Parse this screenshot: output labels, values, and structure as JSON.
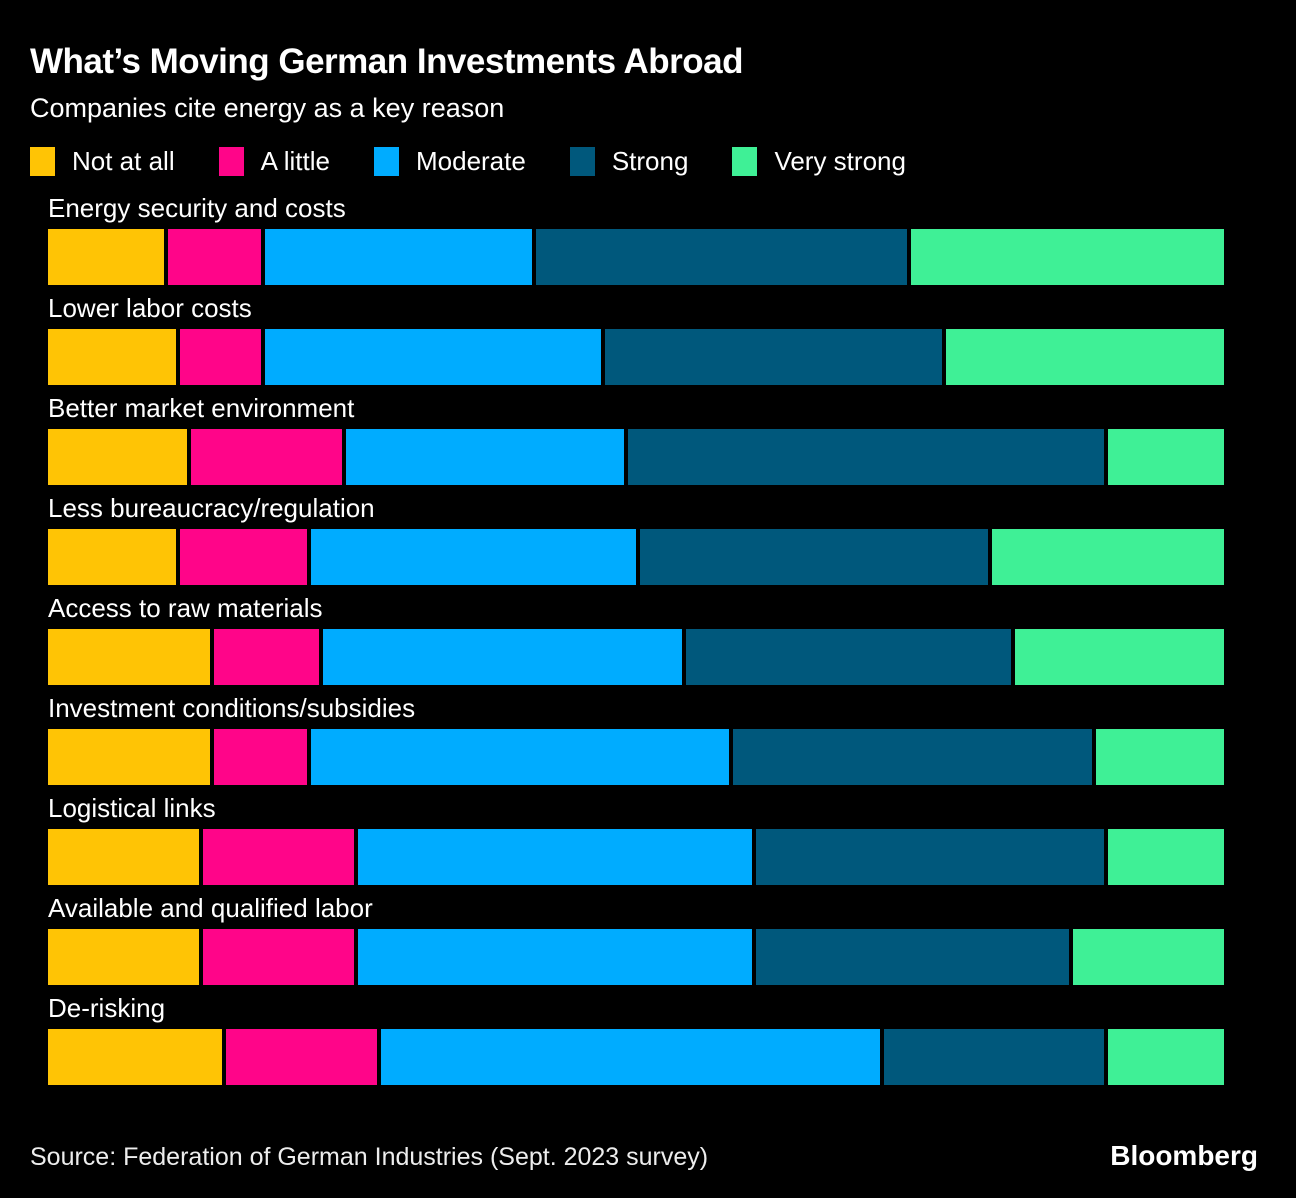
{
  "header": {
    "title": "What’s Moving German Investments Abroad",
    "subtitle": "Companies cite energy as a key reason"
  },
  "colors": {
    "background": "#000000",
    "not_at_all": "#ffc405",
    "a_little": "#ff0589",
    "moderate": "#00acff",
    "strong": "#00587c",
    "very_strong": "#3ff096",
    "text": "#ffffff"
  },
  "legend": [
    {
      "label": "Not at all",
      "color": "#ffc405"
    },
    {
      "label": "A little",
      "color": "#ff0589"
    },
    {
      "label": "Moderate",
      "color": "#00acff"
    },
    {
      "label": "Strong",
      "color": "#00587c"
    },
    {
      "label": "Very strong",
      "color": "#3ff096"
    }
  ],
  "chart_data": {
    "type": "bar",
    "variant": "horizontal-stacked-100pct",
    "title": "What’s Moving German Investments Abroad",
    "subtitle": "Companies cite energy as a key reason",
    "legend_position": "top",
    "grid": false,
    "axis_labels_shown": false,
    "value_unit": "percent of bar width, estimated from pixels",
    "categories": [
      "Energy security and costs",
      "Lower labor costs",
      "Better market environment",
      "Less bureaucracy/regulation",
      "Access to raw materials",
      "Investment conditions/subsidies",
      "Logistical links",
      "Available and qualified labor",
      "De-risking"
    ],
    "series": [
      {
        "name": "Not at all",
        "color": "#ffc405",
        "values": [
          10,
          11,
          12,
          11,
          14,
          14,
          13,
          13,
          15
        ]
      },
      {
        "name": "A little",
        "color": "#ff0589",
        "values": [
          8,
          7,
          13,
          11,
          9,
          8,
          13,
          13,
          13
        ]
      },
      {
        "name": "Moderate",
        "color": "#00acff",
        "values": [
          23,
          29,
          24,
          28,
          31,
          36,
          34,
          34,
          43
        ]
      },
      {
        "name": "Strong",
        "color": "#00587c",
        "values": [
          32,
          29,
          41,
          30,
          28,
          31,
          30,
          27,
          19
        ]
      },
      {
        "name": "Very strong",
        "color": "#3ff096",
        "values": [
          27,
          24,
          10,
          20,
          18,
          11,
          10,
          13,
          10
        ]
      }
    ]
  },
  "footer": {
    "source": "Source: Federation of German Industries (Sept. 2023 survey)",
    "brand": "Bloomberg"
  }
}
